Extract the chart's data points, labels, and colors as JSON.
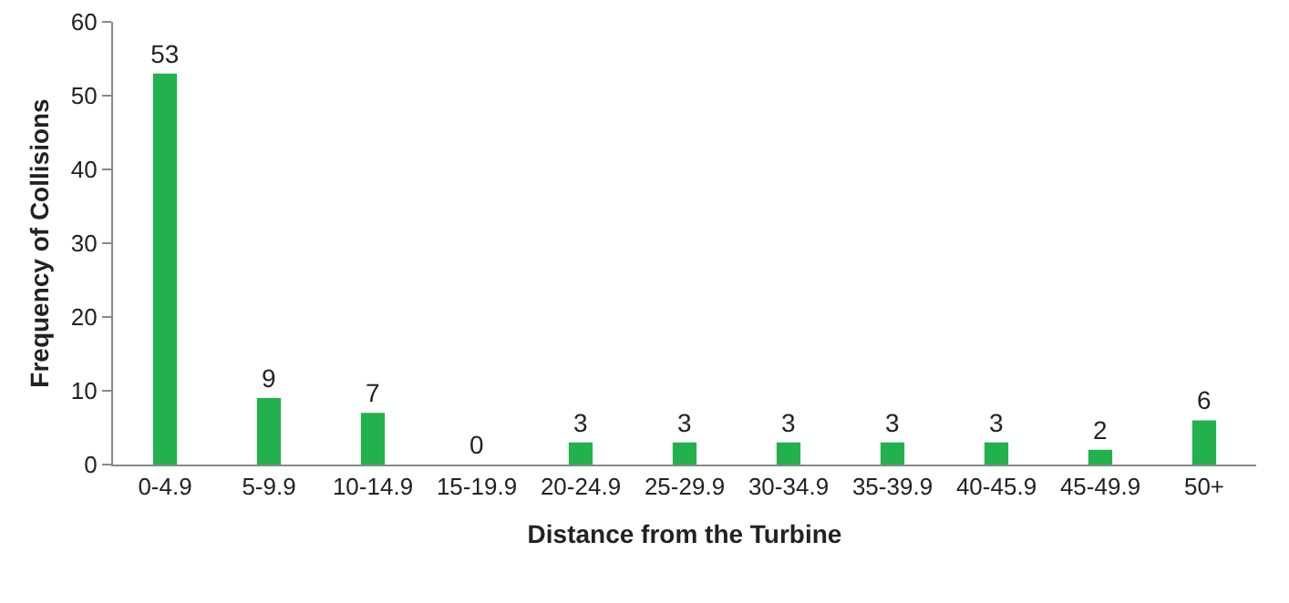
{
  "chart_data": {
    "type": "bar",
    "xlabel": "Distance from the Turbine",
    "ylabel": "Frequency of Collisions",
    "categories": [
      "0-4.9",
      "5-9.9",
      "10-14.9",
      "15-19.9",
      "20-24.9",
      "25-29.9",
      "30-34.9",
      "35-39.9",
      "40-45.9",
      "45-49.9",
      "50+"
    ],
    "values": [
      53,
      9,
      7,
      0,
      3,
      3,
      3,
      3,
      3,
      2,
      6
    ],
    "color": "#22b14c",
    "ylim": [
      0,
      60
    ],
    "yticks": [
      0,
      10,
      20,
      30,
      40,
      50,
      60
    ],
    "data_labels": true,
    "grid": false,
    "legend": false
  }
}
